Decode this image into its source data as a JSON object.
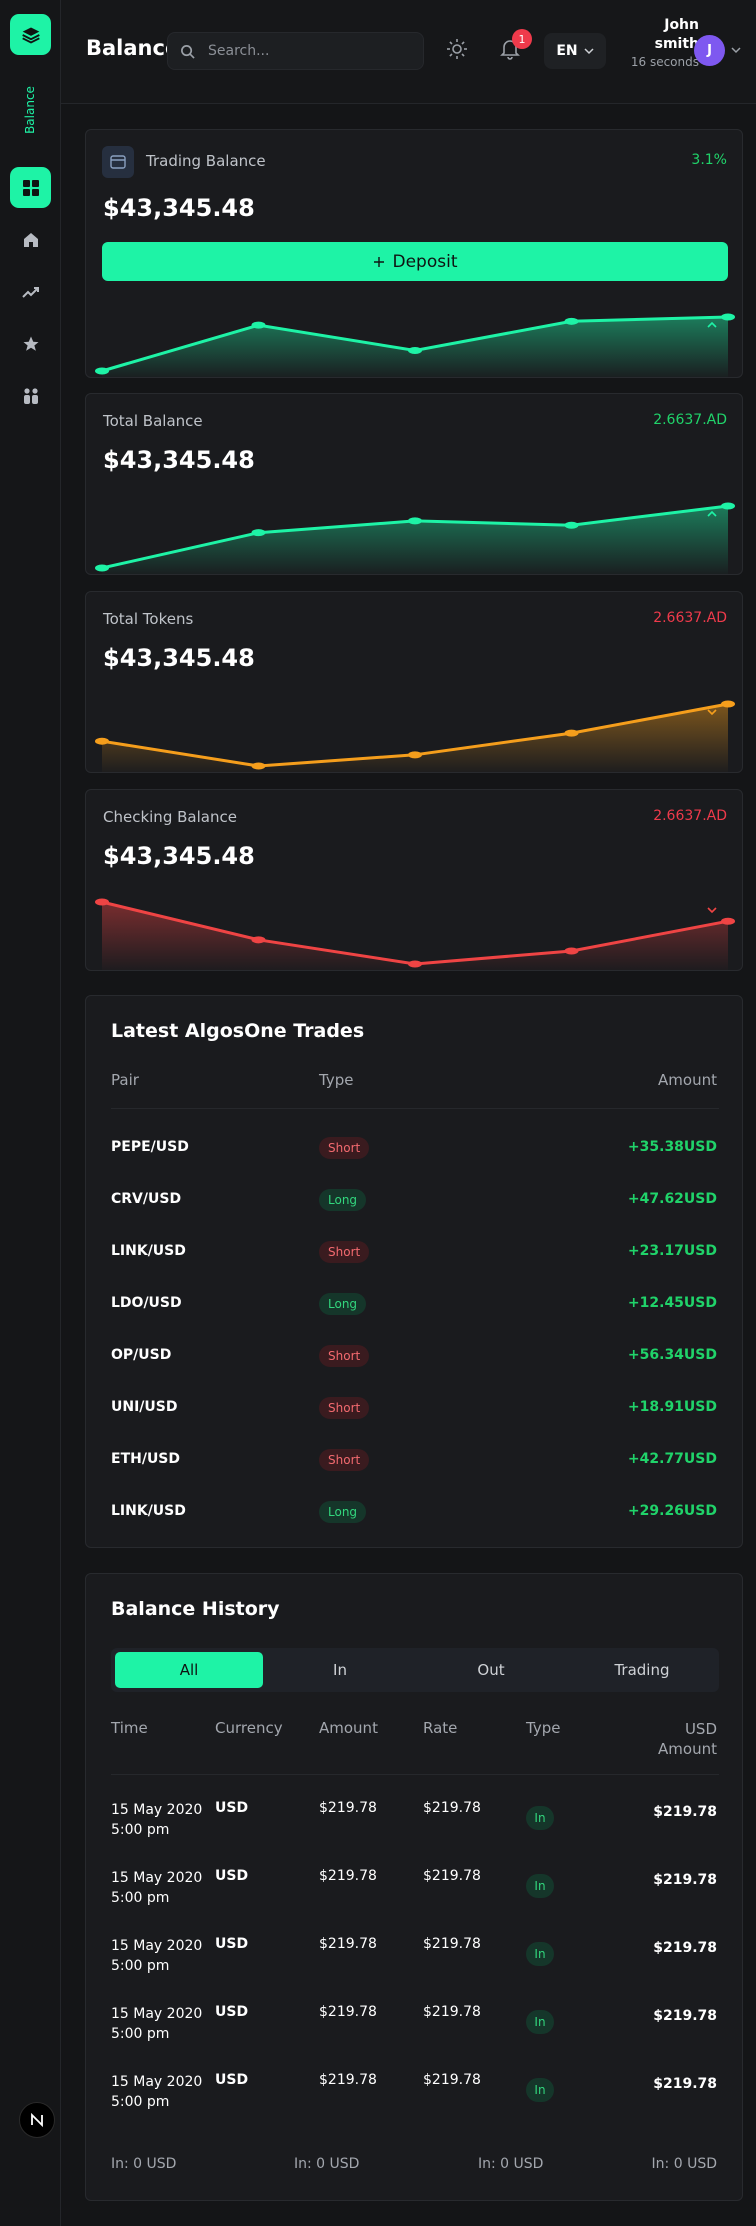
{
  "app": {
    "side_label": "Balance",
    "page_title": "Balance"
  },
  "header": {
    "search_placeholder": "Search...",
    "notification_count": "1",
    "language": "EN",
    "user_name": "John smith",
    "user_time": "16 seconds",
    "avatar_initial": "J"
  },
  "cards": [
    {
      "title": "Trading Balance",
      "change": "3.1%",
      "value": "$43,345.48",
      "button": "Deposit",
      "trend": "up",
      "spark": [
        0.0,
        0.85,
        0.38,
        0.92,
        1.0
      ]
    },
    {
      "title": "Total Balance",
      "change": "2.6637.AD",
      "value": "$43,345.48",
      "trend": "up",
      "spark": [
        0.0,
        0.57,
        0.76,
        0.69,
        1.0
      ]
    },
    {
      "title": "Total Tokens",
      "change": "2.6637.AD",
      "value": "$43,345.48",
      "trend": "down",
      "spark": [
        0.4,
        0.0,
        0.18,
        0.53,
        1.0
      ]
    },
    {
      "title": "Checking Balance",
      "change": "2.6637.AD",
      "value": "$43,345.48",
      "trend": "down",
      "spark": [
        1.0,
        0.39,
        0.0,
        0.21,
        0.69
      ]
    }
  ],
  "trades": {
    "title": "Latest AlgosOne Trades",
    "columns": [
      "Pair",
      "Type",
      "Amount"
    ],
    "rows": [
      {
        "pair": "PEPE/USD",
        "type": "Short",
        "amount": "+35.38USD"
      },
      {
        "pair": "CRV/USD",
        "type": "Long",
        "amount": "+47.62USD"
      },
      {
        "pair": "LINK/USD",
        "type": "Short",
        "amount": "+23.17USD"
      },
      {
        "pair": "LDO/USD",
        "type": "Long",
        "amount": "+12.45USD"
      },
      {
        "pair": "OP/USD",
        "type": "Short",
        "amount": "+56.34USD"
      },
      {
        "pair": "UNI/USD",
        "type": "Short",
        "amount": "+18.91USD"
      },
      {
        "pair": "ETH/USD",
        "type": "Short",
        "amount": "+42.77USD"
      },
      {
        "pair": "LINK/USD",
        "type": "Long",
        "amount": "+29.26USD"
      }
    ]
  },
  "history": {
    "title": "Balance History",
    "tabs": [
      "All",
      "In",
      "Out",
      "Trading"
    ],
    "columns": [
      "Time",
      "Currency",
      "Amount",
      "Rate",
      "Type",
      "USD Amount"
    ],
    "rows": [
      {
        "date": "15 May 2020",
        "time": "5:00 pm",
        "currency": "USD",
        "amount": "$219.78",
        "rate": "$219.78",
        "type": "In",
        "usd": "$219.78"
      },
      {
        "date": "15 May 2020",
        "time": "5:00 pm",
        "currency": "USD",
        "amount": "$219.78",
        "rate": "$219.78",
        "type": "In",
        "usd": "$219.78"
      },
      {
        "date": "15 May 2020",
        "time": "5:00 pm",
        "currency": "USD",
        "amount": "$219.78",
        "rate": "$219.78",
        "type": "In",
        "usd": "$219.78"
      },
      {
        "date": "15 May 2020",
        "time": "5:00 pm",
        "currency": "USD",
        "amount": "$219.78",
        "rate": "$219.78",
        "type": "In",
        "usd": "$219.78"
      },
      {
        "date": "15 May 2020",
        "time": "5:00 pm",
        "currency": "USD",
        "amount": "$219.78",
        "rate": "$219.78",
        "type": "In",
        "usd": "$219.78"
      }
    ],
    "footer": [
      "In: 0 USD",
      "In: 0 USD",
      "In: 0 USD",
      "In: 0 USD"
    ]
  },
  "colors": {
    "accent": "#1ef3a6",
    "positive": "#20d36a",
    "negative": "#ef3a4b",
    "orange": "#f59e1c",
    "red_line": "#ef4444"
  }
}
